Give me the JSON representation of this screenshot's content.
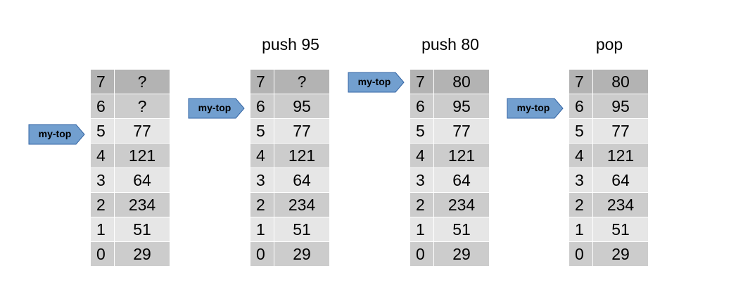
{
  "colors": {
    "header_row": "#b3b3b3",
    "row_dark": "#cccccc",
    "row_light": "#e6e6e6",
    "pointer_fill": "#729fcf",
    "pointer_stroke": "#3465a4"
  },
  "stacks": [
    {
      "title": "",
      "pointer_label": "my-top",
      "top_index": 5,
      "rows": [
        {
          "index": "7",
          "value": "?"
        },
        {
          "index": "6",
          "value": "?"
        },
        {
          "index": "5",
          "value": "77"
        },
        {
          "index": "4",
          "value": "121"
        },
        {
          "index": "3",
          "value": "64"
        },
        {
          "index": "2",
          "value": "234"
        },
        {
          "index": "1",
          "value": "51"
        },
        {
          "index": "0",
          "value": "29"
        }
      ]
    },
    {
      "title": "push 95",
      "pointer_label": "my-top",
      "top_index": 6,
      "rows": [
        {
          "index": "7",
          "value": "?"
        },
        {
          "index": "6",
          "value": "95"
        },
        {
          "index": "5",
          "value": "77"
        },
        {
          "index": "4",
          "value": "121"
        },
        {
          "index": "3",
          "value": "64"
        },
        {
          "index": "2",
          "value": "234"
        },
        {
          "index": "1",
          "value": "51"
        },
        {
          "index": "0",
          "value": "29"
        }
      ]
    },
    {
      "title": "push 80",
      "pointer_label": "my-top",
      "top_index": 7,
      "rows": [
        {
          "index": "7",
          "value": "80"
        },
        {
          "index": "6",
          "value": "95"
        },
        {
          "index": "5",
          "value": "77"
        },
        {
          "index": "4",
          "value": "121"
        },
        {
          "index": "3",
          "value": "64"
        },
        {
          "index": "2",
          "value": "234"
        },
        {
          "index": "1",
          "value": "51"
        },
        {
          "index": "0",
          "value": "29"
        }
      ]
    },
    {
      "title": "pop",
      "pointer_label": "my-top",
      "top_index": 6,
      "rows": [
        {
          "index": "7",
          "value": "80"
        },
        {
          "index": "6",
          "value": "95"
        },
        {
          "index": "5",
          "value": "77"
        },
        {
          "index": "4",
          "value": "121"
        },
        {
          "index": "3",
          "value": "64"
        },
        {
          "index": "2",
          "value": "234"
        },
        {
          "index": "1",
          "value": "51"
        },
        {
          "index": "0",
          "value": "29"
        }
      ]
    }
  ]
}
